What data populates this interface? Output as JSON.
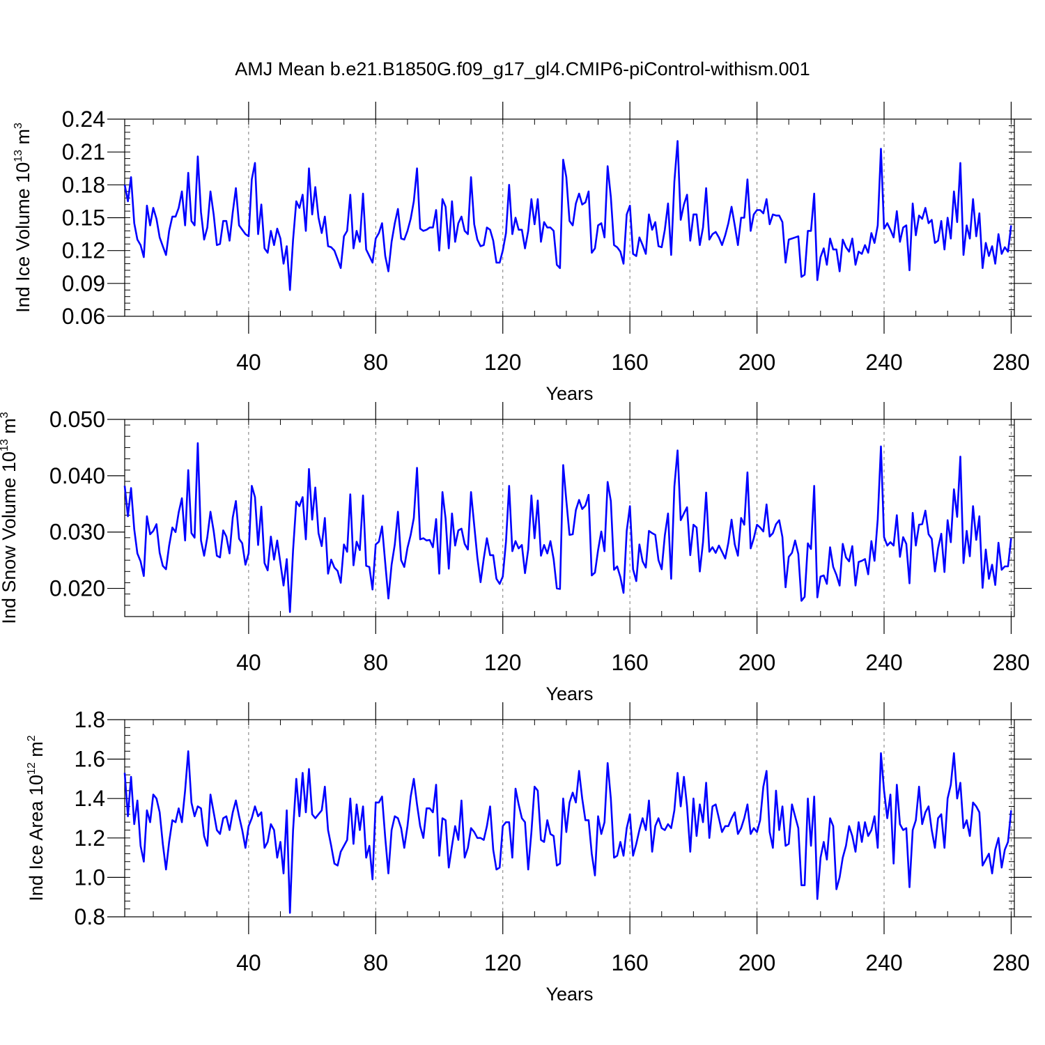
{
  "chart_data": {
    "title": "AMJ Mean b.e21.B1850G.f09_g17_gl4.CMIP6-piControl-withism.001",
    "line_color": "#0000ff",
    "panels": [
      {
        "type": "line",
        "ylabel_main": "Ind Ice Volume 10",
        "ylabel_exp": "13",
        "ylabel_unit": " m",
        "ylabel_unit_exp": "3",
        "xlabel": "Years",
        "xlim": [
          1,
          281
        ],
        "ylim": [
          0.06,
          0.24
        ],
        "yticks": [
          0.06,
          0.09,
          0.12,
          0.15,
          0.18,
          0.21,
          0.24
        ],
        "yticklabels": [
          "0.06",
          "0.09",
          "0.12",
          "0.15",
          "0.18",
          "0.21",
          "0.24"
        ],
        "xticks": [
          40,
          80,
          120,
          160,
          200,
          240,
          280
        ],
        "xticklabels": [
          "40",
          "80",
          "120",
          "160",
          "200",
          "240",
          "280"
        ],
        "values": [
          0.18,
          0.165,
          0.187,
          0.145,
          0.13,
          0.125,
          0.114,
          0.161,
          0.143,
          0.159,
          0.149,
          0.132,
          0.124,
          0.116,
          0.138,
          0.151,
          0.151,
          0.159,
          0.174,
          0.143,
          0.191,
          0.147,
          0.143,
          0.206,
          0.155,
          0.13,
          0.141,
          0.174,
          0.153,
          0.125,
          0.126,
          0.147,
          0.147,
          0.129,
          0.155,
          0.177,
          0.143,
          0.139,
          0.135,
          0.133,
          0.185,
          0.2,
          0.135,
          0.162,
          0.122,
          0.118,
          0.138,
          0.125,
          0.14,
          0.131,
          0.108,
          0.124,
          0.084,
          0.13,
          0.165,
          0.159,
          0.171,
          0.138,
          0.195,
          0.153,
          0.178,
          0.15,
          0.136,
          0.151,
          0.124,
          0.123,
          0.12,
          0.112,
          0.104,
          0.133,
          0.138,
          0.171,
          0.122,
          0.138,
          0.128,
          0.172,
          0.121,
          0.115,
          0.109,
          0.131,
          0.136,
          0.145,
          0.115,
          0.101,
          0.128,
          0.145,
          0.158,
          0.131,
          0.13,
          0.138,
          0.149,
          0.165,
          0.195,
          0.14,
          0.138,
          0.139,
          0.141,
          0.141,
          0.157,
          0.12,
          0.167,
          0.16,
          0.122,
          0.165,
          0.128,
          0.145,
          0.151,
          0.138,
          0.135,
          0.187,
          0.144,
          0.13,
          0.124,
          0.125,
          0.141,
          0.139,
          0.129,
          0.109,
          0.109,
          0.12,
          0.136,
          0.18,
          0.135,
          0.15,
          0.139,
          0.139,
          0.122,
          0.138,
          0.167,
          0.144,
          0.167,
          0.128,
          0.146,
          0.141,
          0.141,
          0.138,
          0.107,
          0.104,
          0.203,
          0.187,
          0.147,
          0.143,
          0.163,
          0.172,
          0.162,
          0.164,
          0.174,
          0.118,
          0.122,
          0.143,
          0.145,
          0.132,
          0.197,
          0.169,
          0.125,
          0.123,
          0.119,
          0.108,
          0.153,
          0.161,
          0.117,
          0.115,
          0.132,
          0.125,
          0.117,
          0.153,
          0.139,
          0.146,
          0.124,
          0.123,
          0.139,
          0.163,
          0.116,
          0.183,
          0.22,
          0.148,
          0.162,
          0.171,
          0.129,
          0.153,
          0.153,
          0.125,
          0.141,
          0.177,
          0.13,
          0.135,
          0.137,
          0.132,
          0.125,
          0.134,
          0.145,
          0.16,
          0.143,
          0.125,
          0.15,
          0.15,
          0.185,
          0.138,
          0.153,
          0.157,
          0.157,
          0.154,
          0.167,
          0.144,
          0.153,
          0.152,
          0.152,
          0.146,
          0.109,
          0.13,
          0.131,
          0.132,
          0.133,
          0.096,
          0.098,
          0.138,
          0.138,
          0.172,
          0.093,
          0.114,
          0.122,
          0.107,
          0.131,
          0.121,
          0.121,
          0.101,
          0.13,
          0.123,
          0.119,
          0.131,
          0.107,
          0.119,
          0.117,
          0.125,
          0.118,
          0.136,
          0.127,
          0.143,
          0.213,
          0.14,
          0.145,
          0.139,
          0.132,
          0.156,
          0.128,
          0.141,
          0.143,
          0.102,
          0.163,
          0.134,
          0.152,
          0.149,
          0.159,
          0.145,
          0.148,
          0.127,
          0.129,
          0.147,
          0.121,
          0.15,
          0.131,
          0.174,
          0.146,
          0.2,
          0.116,
          0.143,
          0.131,
          0.167,
          0.133,
          0.154,
          0.104,
          0.127,
          0.115,
          0.124,
          0.108,
          0.135,
          0.117,
          0.123,
          0.119,
          0.143
        ]
      },
      {
        "type": "line",
        "ylabel_main": "Ind Snow Volume 10",
        "ylabel_exp": "13",
        "ylabel_unit": " m",
        "ylabel_unit_exp": "3",
        "xlabel": "Years",
        "xlim": [
          1,
          281
        ],
        "ylim": [
          0.015,
          0.05
        ],
        "yticks": [
          0.02,
          0.03,
          0.04,
          0.05
        ],
        "yticklabels": [
          "0.020",
          "0.030",
          "0.040",
          "0.050"
        ],
        "xticks": [
          40,
          80,
          120,
          160,
          200,
          240,
          280
        ],
        "xticklabels": [
          "40",
          "80",
          "120",
          "160",
          "200",
          "240",
          "280"
        ],
        "values": [
          0.0382,
          0.0328,
          0.0378,
          0.0305,
          0.0262,
          0.0248,
          0.0222,
          0.0328,
          0.0296,
          0.0302,
          0.0314,
          0.0263,
          0.024,
          0.0234,
          0.0276,
          0.0308,
          0.03,
          0.0335,
          0.036,
          0.0285,
          0.041,
          0.0298,
          0.029,
          0.0458,
          0.0285,
          0.0258,
          0.0291,
          0.0336,
          0.0302,
          0.0258,
          0.0255,
          0.0303,
          0.0292,
          0.0262,
          0.0326,
          0.0355,
          0.0288,
          0.028,
          0.0242,
          0.0262,
          0.0382,
          0.0362,
          0.0277,
          0.0345,
          0.0245,
          0.0232,
          0.0292,
          0.0251,
          0.0285,
          0.0245,
          0.0205,
          0.0252,
          0.0158,
          0.0268,
          0.0354,
          0.0346,
          0.0362,
          0.0287,
          0.0412,
          0.0322,
          0.0379,
          0.0298,
          0.0275,
          0.0325,
          0.0226,
          0.0251,
          0.0237,
          0.0231,
          0.021,
          0.0278,
          0.0265,
          0.0367,
          0.0241,
          0.0283,
          0.0268,
          0.0365,
          0.024,
          0.0238,
          0.0198,
          0.0278,
          0.0283,
          0.031,
          0.0245,
          0.0182,
          0.0242,
          0.0278,
          0.0336,
          0.025,
          0.0238,
          0.0272,
          0.0295,
          0.0325,
          0.0414,
          0.0287,
          0.0289,
          0.0285,
          0.0286,
          0.0273,
          0.0323,
          0.0226,
          0.0371,
          0.0324,
          0.0235,
          0.0333,
          0.0276,
          0.0303,
          0.0306,
          0.0279,
          0.0269,
          0.0371,
          0.0312,
          0.0255,
          0.0211,
          0.0253,
          0.0289,
          0.0259,
          0.0259,
          0.0217,
          0.0208,
          0.0221,
          0.0283,
          0.0382,
          0.0266,
          0.0284,
          0.0271,
          0.0277,
          0.0227,
          0.0269,
          0.0365,
          0.0289,
          0.0356,
          0.0258,
          0.0277,
          0.0262,
          0.0284,
          0.0252,
          0.02,
          0.0199,
          0.0419,
          0.0356,
          0.0295,
          0.0296,
          0.0339,
          0.0357,
          0.0341,
          0.0347,
          0.0366,
          0.0223,
          0.0228,
          0.0268,
          0.0301,
          0.0266,
          0.0389,
          0.0355,
          0.0233,
          0.0239,
          0.022,
          0.0192,
          0.0302,
          0.0346,
          0.0234,
          0.0213,
          0.0278,
          0.0248,
          0.0237,
          0.0302,
          0.0298,
          0.0295,
          0.025,
          0.0234,
          0.0294,
          0.0333,
          0.0217,
          0.0381,
          0.0445,
          0.0321,
          0.0333,
          0.0344,
          0.0259,
          0.0313,
          0.0308,
          0.023,
          0.0282,
          0.037,
          0.0265,
          0.0273,
          0.0263,
          0.0276,
          0.0265,
          0.0253,
          0.0281,
          0.0322,
          0.0278,
          0.0258,
          0.0325,
          0.0313,
          0.0406,
          0.0271,
          0.0289,
          0.0313,
          0.0308,
          0.0301,
          0.0349,
          0.0292,
          0.0298,
          0.0314,
          0.0321,
          0.0291,
          0.0202,
          0.0256,
          0.0263,
          0.0285,
          0.0261,
          0.0178,
          0.0185,
          0.028,
          0.027,
          0.0382,
          0.0184,
          0.0221,
          0.0223,
          0.0208,
          0.0273,
          0.0238,
          0.0224,
          0.0205,
          0.0279,
          0.0255,
          0.0248,
          0.0275,
          0.0205,
          0.0247,
          0.0249,
          0.0252,
          0.0225,
          0.0284,
          0.0249,
          0.0323,
          0.0452,
          0.0291,
          0.0276,
          0.0282,
          0.0276,
          0.033,
          0.0256,
          0.0291,
          0.0279,
          0.0209,
          0.0334,
          0.0276,
          0.0313,
          0.0314,
          0.0338,
          0.0296,
          0.0288,
          0.023,
          0.0271,
          0.0297,
          0.0229,
          0.0321,
          0.0282,
          0.0376,
          0.0327,
          0.0434,
          0.0245,
          0.0302,
          0.0257,
          0.0346,
          0.0286,
          0.0328,
          0.0201,
          0.0269,
          0.0217,
          0.0242,
          0.0206,
          0.0281,
          0.0233,
          0.0239,
          0.0239,
          0.0289
        ]
      },
      {
        "type": "line",
        "ylabel_main": "Ind Ice Area 10",
        "ylabel_exp": "12",
        "ylabel_unit": " m",
        "ylabel_unit_exp": "2",
        "xlabel": "Years",
        "xlim": [
          1,
          281
        ],
        "ylim": [
          0.8,
          1.8
        ],
        "yticks": [
          0.8,
          1.0,
          1.2,
          1.4,
          1.6,
          1.8
        ],
        "yticklabels": [
          "0.8",
          "1.0",
          "1.2",
          "1.4",
          "1.6",
          "1.8"
        ],
        "xticks": [
          40,
          80,
          120,
          160,
          200,
          240,
          280
        ],
        "xticklabels": [
          "40",
          "80",
          "120",
          "160",
          "200",
          "240",
          "280"
        ],
        "values": [
          1.53,
          1.31,
          1.51,
          1.27,
          1.39,
          1.16,
          1.08,
          1.34,
          1.28,
          1.42,
          1.4,
          1.33,
          1.17,
          1.04,
          1.18,
          1.29,
          1.28,
          1.35,
          1.28,
          1.44,
          1.64,
          1.38,
          1.31,
          1.36,
          1.35,
          1.21,
          1.16,
          1.42,
          1.33,
          1.24,
          1.22,
          1.3,
          1.31,
          1.24,
          1.33,
          1.39,
          1.31,
          1.24,
          1.15,
          1.26,
          1.3,
          1.36,
          1.31,
          1.33,
          1.15,
          1.18,
          1.27,
          1.24,
          1.1,
          1.18,
          1.02,
          1.34,
          0.82,
          1.24,
          1.5,
          1.31,
          1.53,
          1.33,
          1.55,
          1.32,
          1.3,
          1.32,
          1.34,
          1.46,
          1.24,
          1.16,
          1.07,
          1.06,
          1.13,
          1.16,
          1.19,
          1.4,
          1.17,
          1.37,
          1.24,
          1.36,
          1.1,
          1.16,
          0.99,
          1.38,
          1.38,
          1.41,
          1.2,
          1.02,
          1.24,
          1.31,
          1.3,
          1.25,
          1.15,
          1.26,
          1.41,
          1.5,
          1.37,
          1.26,
          1.2,
          1.35,
          1.35,
          1.33,
          1.47,
          1.11,
          1.3,
          1.29,
          1.05,
          1.16,
          1.26,
          1.19,
          1.39,
          1.1,
          1.15,
          1.25,
          1.23,
          1.2,
          1.2,
          1.19,
          1.26,
          1.36,
          1.14,
          1.04,
          1.05,
          1.26,
          1.28,
          1.28,
          1.1,
          1.45,
          1.37,
          1.3,
          1.28,
          1.04,
          1.23,
          1.46,
          1.44,
          1.19,
          1.18,
          1.29,
          1.22,
          1.21,
          1.06,
          1.07,
          1.4,
          1.23,
          1.38,
          1.43,
          1.38,
          1.54,
          1.4,
          1.29,
          1.29,
          1.12,
          1.01,
          1.31,
          1.22,
          1.28,
          1.58,
          1.4,
          1.1,
          1.11,
          1.18,
          1.11,
          1.25,
          1.32,
          1.11,
          1.17,
          1.24,
          1.3,
          1.24,
          1.39,
          1.13,
          1.26,
          1.3,
          1.25,
          1.24,
          1.27,
          1.25,
          1.34,
          1.53,
          1.36,
          1.51,
          1.36,
          1.13,
          1.4,
          1.21,
          1.37,
          1.28,
          1.48,
          1.2,
          1.36,
          1.37,
          1.3,
          1.23,
          1.26,
          1.26,
          1.3,
          1.33,
          1.22,
          1.25,
          1.3,
          1.37,
          1.22,
          1.25,
          1.23,
          1.29,
          1.46,
          1.54,
          1.23,
          1.15,
          1.44,
          1.24,
          1.36,
          1.16,
          1.17,
          1.37,
          1.31,
          1.25,
          0.96,
          0.96,
          1.4,
          1.16,
          1.41,
          0.89,
          1.1,
          1.18,
          1.09,
          1.3,
          1.26,
          0.94,
          1.0,
          1.1,
          1.16,
          1.26,
          1.21,
          1.13,
          1.28,
          1.18,
          1.28,
          1.21,
          1.24,
          1.31,
          1.15,
          1.63,
          1.44,
          1.3,
          1.42,
          1.07,
          1.47,
          1.27,
          1.24,
          1.25,
          0.95,
          1.24,
          1.29,
          1.46,
          1.27,
          1.33,
          1.36,
          1.24,
          1.15,
          1.3,
          1.32,
          1.15,
          1.4,
          1.47,
          1.63,
          1.4,
          1.48,
          1.25,
          1.29,
          1.21,
          1.38,
          1.36,
          1.33,
          1.06,
          1.09,
          1.12,
          1.02,
          1.14,
          1.2,
          1.05,
          1.14,
          1.18,
          1.34
        ]
      }
    ]
  }
}
